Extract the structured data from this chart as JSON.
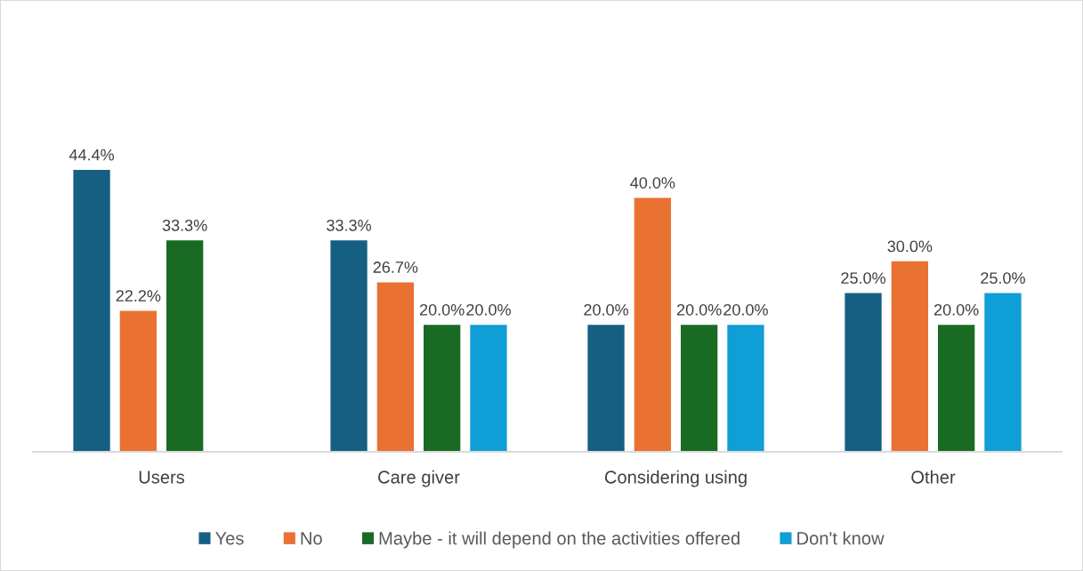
{
  "chart_data": {
    "type": "bar",
    "categories": [
      "Users",
      "Care giver",
      "Considering using",
      "Other"
    ],
    "series": [
      {
        "name": "Yes",
        "color": "#156082",
        "values": [
          44.4,
          33.3,
          20.0,
          25.0
        ],
        "value_labels": [
          "44.4%",
          "33.3%",
          "20.0%",
          "25.0%"
        ]
      },
      {
        "name": "No",
        "color": "#e97132",
        "values": [
          22.2,
          26.7,
          40.0,
          30.0
        ],
        "value_labels": [
          "22.2%",
          "26.7%",
          "40.0%",
          "30.0%"
        ]
      },
      {
        "name": "Maybe - it will depend on the activities offered",
        "color": "#196b24",
        "values": [
          33.3,
          20.0,
          20.0,
          20.0
        ],
        "value_labels": [
          "33.3%",
          "20.0%",
          "20.0%",
          "20.0%"
        ]
      },
      {
        "name": "Don't know",
        "color": "#0f9ed5",
        "values": [
          null,
          20.0,
          20.0,
          25.0
        ],
        "value_labels": [
          null,
          "20.0%",
          "20.0%",
          "25.0%"
        ]
      }
    ],
    "legend": "bottom",
    "tick_labels": "x"
  }
}
